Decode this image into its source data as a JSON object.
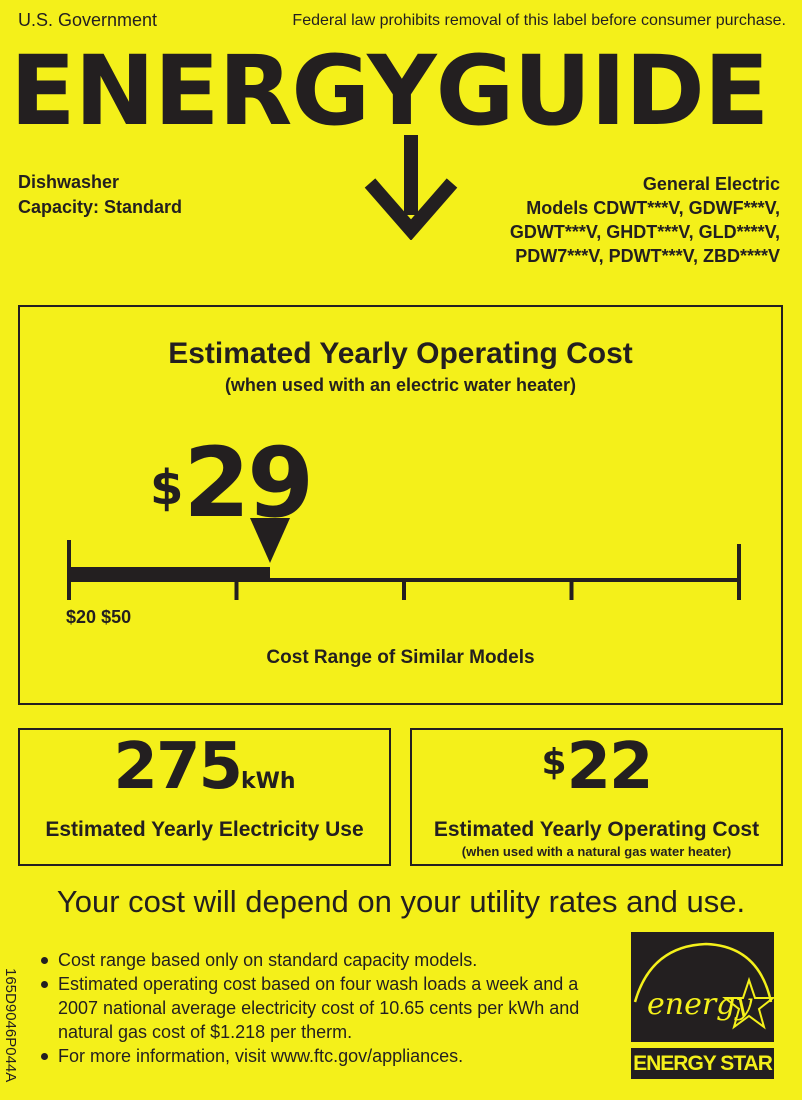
{
  "header": {
    "government": "U.S. Government",
    "notice": "Federal law prohibits removal of this label before consumer purchase.",
    "title": "ENERGYGUIDE"
  },
  "product": {
    "type": "Dishwasher",
    "capacity": "Capacity: Standard",
    "brand": "General Electric",
    "models": [
      "Models  CDWT***V, GDWF***V,",
      "GDWT***V, GHDT***V, GLD****V,",
      "PDW7***V, PDWT***V, ZBD****V"
    ]
  },
  "main_cost": {
    "title": "Estimated Yearly Operating Cost",
    "subtitle": "(when used with an electric water heater)",
    "currency": "$",
    "value": "29",
    "range_min_label": "$20",
    "range_max_label": "$50",
    "range_min": 20,
    "range_max": 50,
    "marker_value": 29,
    "range_caption": "Cost Range of Similar Models"
  },
  "electricity": {
    "value": "275",
    "unit": "kWh",
    "label": "Estimated Yearly Electricity Use"
  },
  "gas_cost": {
    "currency": "$",
    "value": "22",
    "label": "Estimated Yearly Operating Cost",
    "sublabel": "(when used with a natural gas water heater)"
  },
  "disclaimer": "Your cost will depend on your utility rates and use.",
  "notes": [
    "Cost range based only on standard capacity models.",
    "Estimated operating cost based on four wash loads a week and a 2007 national average electricity cost of 10.65 cents per kWh and natural gas cost of $1.218 per therm.",
    "For more information, visit www.ftc.gov/appliances."
  ],
  "label_code": "165D9046P044A",
  "energy_star": {
    "script": "energy",
    "label": "ENERGY STAR"
  },
  "colors": {
    "background": "#f4f01a",
    "ink": "#231f20"
  }
}
